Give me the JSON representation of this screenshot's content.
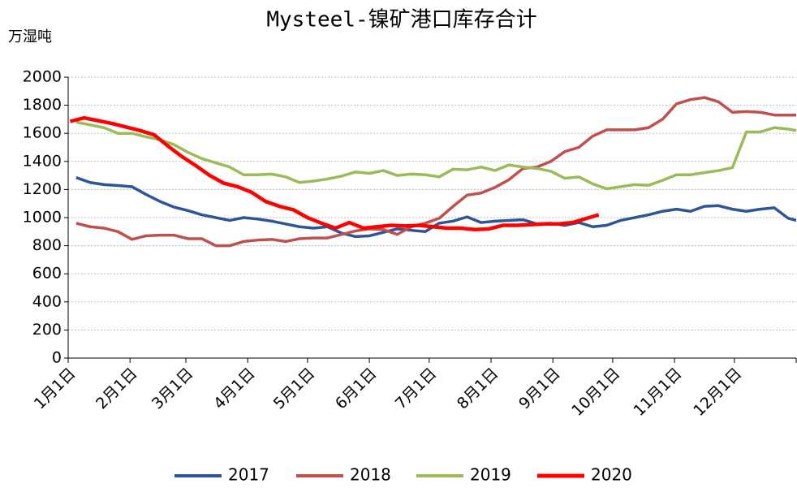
{
  "chart_data": {
    "type": "line",
    "title": "Mysteel-镍矿港口库存合计",
    "y_label": "万湿吨",
    "xlim": [
      0,
      365
    ],
    "xticks": [
      {
        "value": 0,
        "label": "1月1日"
      },
      {
        "value": 31,
        "label": "2月1日"
      },
      {
        "value": 59,
        "label": "3月1日"
      },
      {
        "value": 90,
        "label": "4月1日"
      },
      {
        "value": 120,
        "label": "5月1日"
      },
      {
        "value": 151,
        "label": "6月1日"
      },
      {
        "value": 181,
        "label": "7月1日"
      },
      {
        "value": 212,
        "label": "8月1日"
      },
      {
        "value": 243,
        "label": "9月1日"
      },
      {
        "value": 273,
        "label": "10月1日"
      },
      {
        "value": 304,
        "label": "11月1日"
      },
      {
        "value": 334,
        "label": "12月1日"
      }
    ],
    "ylim": [
      0,
      2000
    ],
    "yticks": [
      0,
      200,
      400,
      600,
      800,
      1000,
      1200,
      1400,
      1600,
      1800,
      2000
    ],
    "grid": true,
    "series": [
      {
        "name": "2017",
        "color": "#2e5597",
        "x": [
          4,
          11,
          18,
          25,
          32,
          39,
          46,
          53,
          60,
          67,
          74,
          81,
          88,
          95,
          102,
          109,
          116,
          123,
          130,
          137,
          144,
          151,
          158,
          165,
          172,
          179,
          186,
          193,
          200,
          207,
          214,
          221,
          228,
          235,
          242,
          249,
          256,
          263,
          270,
          277,
          284,
          291,
          298,
          305,
          312,
          319,
          326,
          333,
          340,
          347,
          354,
          361,
          365
        ],
        "values": [
          1285,
          1250,
          1235,
          1228,
          1220,
          1165,
          1115,
          1075,
          1050,
          1020,
          1000,
          980,
          1000,
          990,
          975,
          955,
          935,
          925,
          935,
          890,
          865,
          870,
          895,
          920,
          910,
          900,
          960,
          975,
          1005,
          965,
          975,
          980,
          985,
          955,
          960,
          945,
          965,
          935,
          945,
          980,
          1000,
          1020,
          1045,
          1060,
          1045,
          1080,
          1085,
          1060,
          1045,
          1060,
          1070,
          995,
          980
        ]
      },
      {
        "name": "2018",
        "color": "#c0504d",
        "x": [
          4,
          11,
          18,
          25,
          32,
          39,
          46,
          53,
          60,
          67,
          74,
          81,
          88,
          95,
          102,
          109,
          116,
          123,
          130,
          137,
          144,
          151,
          158,
          165,
          172,
          179,
          186,
          193,
          200,
          207,
          214,
          221,
          228,
          235,
          242,
          249,
          256,
          263,
          270,
          277,
          284,
          291,
          298,
          305,
          312,
          319,
          326,
          333,
          340,
          347,
          354,
          361,
          365
        ],
        "values": [
          960,
          935,
          925,
          900,
          845,
          870,
          875,
          875,
          850,
          850,
          800,
          800,
          830,
          840,
          845,
          830,
          850,
          855,
          855,
          880,
          905,
          920,
          915,
          880,
          935,
          960,
          995,
          1080,
          1160,
          1175,
          1215,
          1270,
          1350,
          1360,
          1400,
          1470,
          1500,
          1580,
          1625,
          1625,
          1625,
          1640,
          1700,
          1810,
          1840,
          1855,
          1825,
          1750,
          1755,
          1750,
          1730,
          1730,
          1730
        ]
      },
      {
        "name": "2019",
        "color": "#9bbb59",
        "x": [
          4,
          11,
          18,
          25,
          32,
          39,
          46,
          53,
          60,
          67,
          74,
          81,
          88,
          95,
          102,
          109,
          116,
          123,
          130,
          137,
          144,
          151,
          158,
          165,
          172,
          179,
          186,
          193,
          200,
          207,
          214,
          221,
          228,
          235,
          242,
          249,
          256,
          263,
          270,
          277,
          284,
          291,
          298,
          305,
          312,
          319,
          326,
          333,
          340,
          347,
          354,
          361,
          365
        ],
        "values": [
          1680,
          1660,
          1640,
          1600,
          1600,
          1575,
          1555,
          1520,
          1465,
          1420,
          1390,
          1360,
          1305,
          1305,
          1310,
          1290,
          1250,
          1260,
          1275,
          1295,
          1325,
          1315,
          1335,
          1300,
          1310,
          1305,
          1290,
          1345,
          1340,
          1360,
          1335,
          1375,
          1360,
          1350,
          1330,
          1280,
          1290,
          1240,
          1205,
          1220,
          1235,
          1230,
          1265,
          1305,
          1305,
          1320,
          1335,
          1355,
          1610,
          1610,
          1640,
          1630,
          1620
        ]
      },
      {
        "name": "2020",
        "color": "#ff0000",
        "x": [
          1,
          8,
          15,
          22,
          29,
          36,
          43,
          50,
          57,
          64,
          71,
          78,
          85,
          92,
          99,
          106,
          113,
          120,
          127,
          134,
          141,
          148,
          155,
          162,
          169,
          176,
          183,
          190,
          197,
          204,
          211,
          218,
          225,
          232,
          239,
          246,
          253,
          260,
          266
        ],
        "values": [
          1685,
          1710,
          1690,
          1670,
          1645,
          1620,
          1590,
          1510,
          1435,
          1370,
          1300,
          1245,
          1220,
          1180,
          1115,
          1080,
          1055,
          1000,
          960,
          925,
          965,
          925,
          935,
          945,
          940,
          945,
          935,
          925,
          925,
          915,
          920,
          945,
          945,
          950,
          955,
          955,
          965,
          995,
          1020
        ]
      }
    ]
  }
}
